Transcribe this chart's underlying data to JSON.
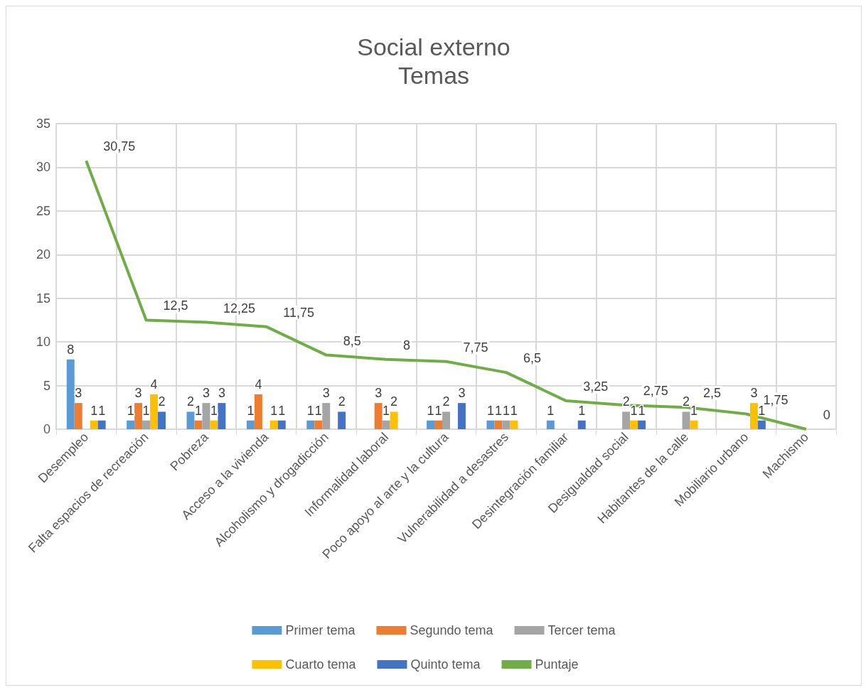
{
  "chart_data": {
    "type": "bar",
    "title": "Social externo",
    "subtitle": "Temas",
    "categories": [
      "Desempleo",
      "Falta espacios de recreación",
      "Pobreza",
      "Acceso a la vivienda",
      "Alcoholismo y drogadicción",
      "Informalidad laboral",
      "Poco apoyo al arte y la cultura",
      "Vulnerabilidad a desastres",
      "Desintegración familiar",
      "Desigualdad social",
      "Habitantes de la calle",
      "Mobiliario urbano",
      "Machismo"
    ],
    "series": [
      {
        "name": "Primer tema",
        "color": "#5b9bd5",
        "values": [
          8,
          1,
          2,
          1,
          1,
          null,
          1,
          1,
          1,
          null,
          null,
          null,
          null
        ]
      },
      {
        "name": "Segundo tema",
        "color": "#ed7d31",
        "values": [
          3,
          3,
          1,
          4,
          1,
          3,
          1,
          1,
          null,
          null,
          null,
          null,
          null
        ]
      },
      {
        "name": "Tercer tema",
        "color": "#a5a5a5",
        "values": [
          null,
          1,
          3,
          null,
          3,
          1,
          2,
          1,
          null,
          2,
          2,
          null,
          null
        ]
      },
      {
        "name": "Cuarto tema",
        "color": "#ffc000",
        "values": [
          1,
          4,
          1,
          1,
          null,
          2,
          null,
          1,
          null,
          1,
          1,
          3,
          null
        ]
      },
      {
        "name": "Quinto tema",
        "color": "#4472c4",
        "values": [
          1,
          2,
          3,
          1,
          2,
          null,
          3,
          null,
          1,
          1,
          null,
          1,
          null
        ]
      },
      {
        "name": "Puntaje",
        "type": "line",
        "color": "#70ad47",
        "values": [
          30.75,
          12.5,
          12.25,
          11.75,
          8.5,
          8,
          7.75,
          6.5,
          3.25,
          2.75,
          2.5,
          1.75,
          0
        ],
        "value_labels": [
          "30,75",
          "12,5",
          "12,25",
          "11,75",
          "8,5",
          "8",
          "7,75",
          "6,5",
          "3,25",
          "2,75",
          "2,5",
          "1,75",
          "0"
        ]
      }
    ],
    "ylim": [
      0,
      35
    ],
    "yticks": [
      0,
      5,
      10,
      15,
      20,
      25,
      30,
      35
    ],
    "grid": true,
    "legend": "bottom",
    "data_labels": true,
    "marker": "none",
    "line_style": "solid"
  }
}
